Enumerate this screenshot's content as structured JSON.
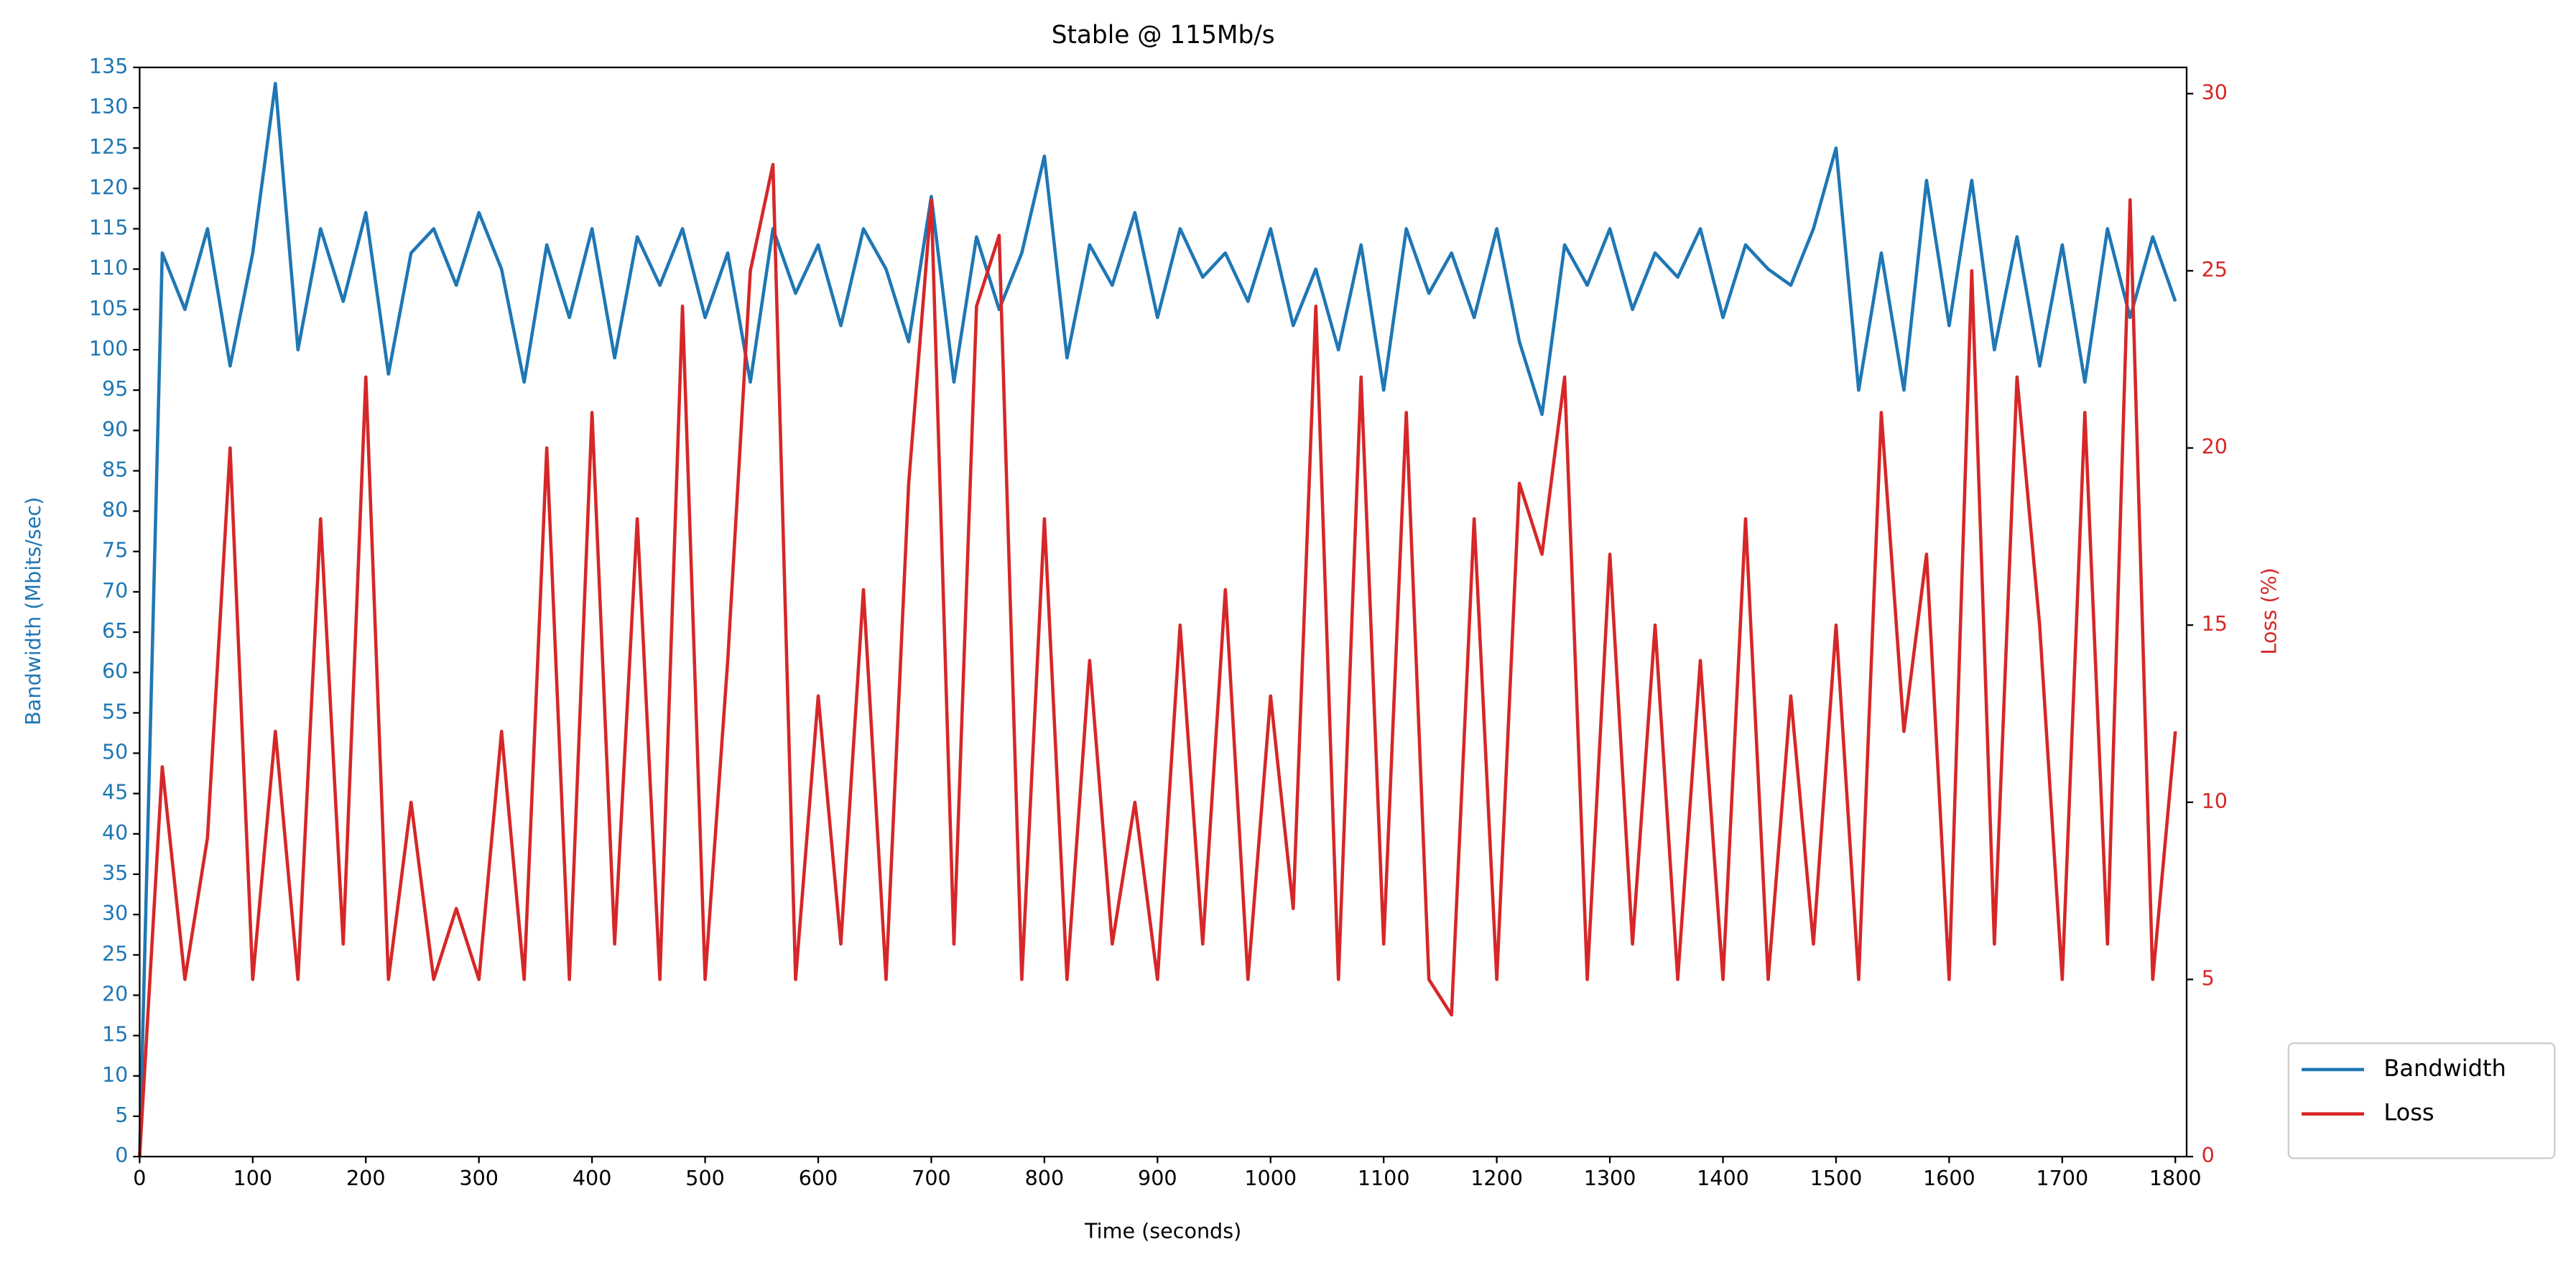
{
  "chart_data": {
    "type": "line",
    "title": "Stable @ 115Mb/s",
    "xlabel": "Time (seconds)",
    "ylabel": "Bandwidth (Mbits/sec)",
    "y2label": "Loss (%)",
    "x": [
      0,
      20,
      40,
      60,
      80,
      100,
      120,
      140,
      160,
      180,
      200,
      220,
      240,
      260,
      280,
      300,
      320,
      340,
      360,
      380,
      400,
      420,
      440,
      460,
      480,
      500,
      520,
      540,
      560,
      580,
      600,
      620,
      640,
      660,
      680,
      700,
      720,
      740,
      760,
      780,
      800,
      820,
      840,
      860,
      880,
      900,
      920,
      940,
      960,
      980,
      1000,
      1020,
      1040,
      1060,
      1080,
      1100,
      1120,
      1140,
      1160,
      1180,
      1200,
      1220,
      1240,
      1260,
      1280,
      1300,
      1320,
      1340,
      1360,
      1380,
      1400,
      1420,
      1440,
      1460,
      1480,
      1500,
      1520,
      1540,
      1560,
      1580,
      1600,
      1620,
      1640,
      1660,
      1680,
      1700,
      1720,
      1740,
      1760,
      1780,
      1800
    ],
    "series": [
      {
        "name": "Bandwidth",
        "color": "#1f77b4",
        "axis": "y",
        "values": [
          0,
          112,
          105,
          115,
          98,
          112,
          133,
          100,
          115,
          106,
          117,
          97,
          112,
          115,
          108,
          117,
          110,
          96,
          113,
          104,
          115,
          99,
          114,
          108,
          115,
          104,
          112,
          96,
          115,
          107,
          113,
          103,
          115,
          110,
          101,
          119,
          96,
          114,
          105,
          112,
          124,
          99,
          113,
          108,
          117,
          104,
          115,
          109,
          112,
          106,
          115,
          103,
          110,
          100,
          113,
          95,
          115,
          107,
          112,
          104,
          115,
          101,
          92,
          113,
          108,
          115,
          105,
          112,
          109,
          115,
          104,
          113,
          110,
          108,
          115,
          125,
          95,
          112,
          95,
          121,
          103,
          121,
          100,
          114,
          98,
          113,
          96,
          115,
          104,
          114,
          106
        ]
      },
      {
        "name": "Loss",
        "color": "#d62728",
        "axis": "y2",
        "values": [
          0,
          11,
          5,
          9,
          20,
          5,
          12,
          5,
          18,
          6,
          22,
          5,
          10,
          5,
          7,
          5,
          12,
          5,
          20,
          5,
          21,
          6,
          18,
          5,
          24,
          5,
          14,
          25,
          28,
          5,
          13,
          6,
          16,
          5,
          19,
          27,
          6,
          24,
          26,
          5,
          18,
          5,
          14,
          6,
          10,
          5,
          15,
          6,
          16,
          5,
          13,
          7,
          24,
          5,
          22,
          6,
          21,
          5,
          4,
          18,
          5,
          19,
          17,
          22,
          5,
          17,
          6,
          15,
          5,
          14,
          5,
          18,
          5,
          13,
          6,
          15,
          5,
          21,
          12,
          17,
          5,
          25,
          6,
          22,
          15,
          5,
          21,
          6,
          27,
          5,
          12
        ]
      }
    ],
    "xlim": [
      0,
      1810
    ],
    "xticks": [
      0,
      100,
      200,
      300,
      400,
      500,
      600,
      700,
      800,
      900,
      1000,
      1100,
      1200,
      1300,
      1400,
      1500,
      1600,
      1700,
      1800
    ],
    "ylim": [
      0,
      135
    ],
    "yticks": [
      0,
      5,
      10,
      15,
      20,
      25,
      30,
      35,
      40,
      45,
      50,
      55,
      60,
      65,
      70,
      75,
      80,
      85,
      90,
      95,
      100,
      105,
      110,
      115,
      120,
      125,
      130,
      135
    ],
    "y2lim": [
      0,
      30.74
    ],
    "y2ticks": [
      0,
      5,
      10,
      15,
      20,
      25,
      30
    ],
    "grid": false,
    "legend": "outside lower right"
  }
}
